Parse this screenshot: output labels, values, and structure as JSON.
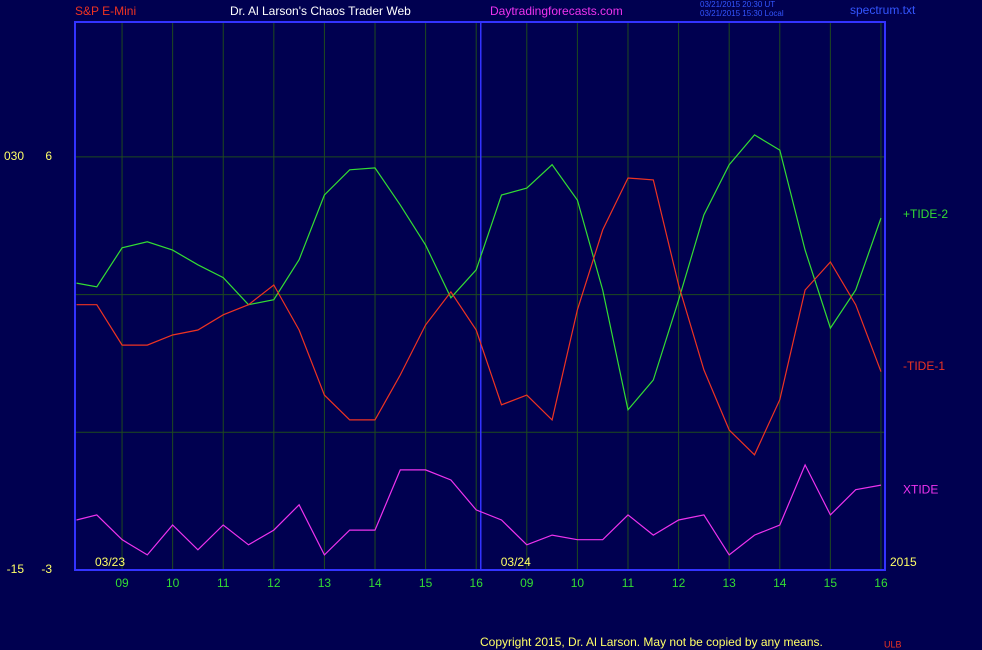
{
  "chart_data": {
    "type": "line",
    "header": {
      "symbol": "S&P E-Mini",
      "title": "Dr. Al Larson's Chaos Trader Web",
      "site": "Daytradingforecasts.com",
      "stamp_ut": "03/21/2015 20:30 UT",
      "stamp_local": "03/21/2015 15:30 Local",
      "file": "spectrum.txt"
    },
    "x": [
      8.1,
      8.5,
      9,
      9.5,
      10,
      10.5,
      11,
      11.5,
      12,
      12.5,
      13,
      13.5,
      14,
      14.5,
      15,
      15.5,
      16,
      16.5,
      17,
      17.5,
      18,
      18.5,
      19,
      19.5,
      20,
      20.5,
      21,
      21.5,
      22,
      22.5,
      23,
      23.5,
      24
    ],
    "series": [
      {
        "name": "+TIDE-2",
        "color": "#33dd33",
        "values": [
          3.25,
          3.17,
          4.02,
          4.15,
          3.97,
          3.65,
          3.37,
          2.78,
          2.89,
          3.76,
          5.17,
          5.72,
          5.76,
          4.95,
          4.08,
          2.93,
          3.54,
          5.17,
          5.32,
          5.83,
          5.06,
          3.1,
          0.49,
          1.14,
          2.88,
          4.74,
          5.83,
          6.48,
          6.15,
          3.97,
          2.27,
          3.1,
          4.67
        ]
      },
      {
        "name": "-TIDE-1",
        "color": "#ee3322",
        "values": [
          2.78,
          2.78,
          1.9,
          1.9,
          2.12,
          2.23,
          2.56,
          2.78,
          3.21,
          2.23,
          0.81,
          0.27,
          0.27,
          1.25,
          2.34,
          3.06,
          2.23,
          0.6,
          0.81,
          0.27,
          2.67,
          4.41,
          5.54,
          5.5,
          3.21,
          1.36,
          0.05,
          -0.49,
          0.71,
          3.1,
          3.71,
          2.78,
          1.32
        ]
      },
      {
        "name": "XTIDE",
        "color": "#ee33ee",
        "values": [
          -1.91,
          -1.8,
          -2.34,
          -2.67,
          -2.02,
          -2.56,
          -2.02,
          -2.45,
          -2.13,
          -1.58,
          -2.67,
          -2.13,
          -2.13,
          -0.82,
          -0.82,
          -1.04,
          -1.69,
          -1.91,
          -2.45,
          -2.24,
          -2.34,
          -2.34,
          -1.8,
          -2.24,
          -1.91,
          -1.8,
          -2.67,
          -2.24,
          -2.02,
          -0.71,
          -1.8,
          -1.25,
          -1.15
        ]
      }
    ],
    "xlim": [
      8.07,
      24.08
    ],
    "xticks": [
      {
        "value": 9,
        "label": "09"
      },
      10,
      11,
      12,
      13,
      14,
      15,
      16,
      {
        "value": 17,
        "label": "09"
      },
      {
        "value": 18,
        "label": "10"
      },
      {
        "value": 19,
        "label": "11"
      },
      {
        "value": 20,
        "label": "12"
      },
      {
        "value": 21,
        "label": "13"
      },
      {
        "value": 22,
        "label": "14"
      },
      {
        "value": 23,
        "label": "15"
      },
      {
        "value": 24,
        "label": "16"
      }
    ],
    "ylim": [
      -3,
      8.94
    ],
    "yticks": [
      6,
      -3
    ],
    "ygrid": [
      -3,
      0,
      3,
      6
    ],
    "y2lim": [
      -15,
      44.7
    ],
    "y2ticks": [
      {
        "value": 30,
        "label": "030"
      },
      -15
    ],
    "day_markers": [
      {
        "x": 8.07,
        "label": "03/23"
      },
      {
        "x": 16.09,
        "label": "03/24"
      }
    ],
    "year": "2015",
    "copyright": "Copyright 2015, Dr. Al Larson. May not be copied by any means.",
    "mark": "ULB"
  }
}
